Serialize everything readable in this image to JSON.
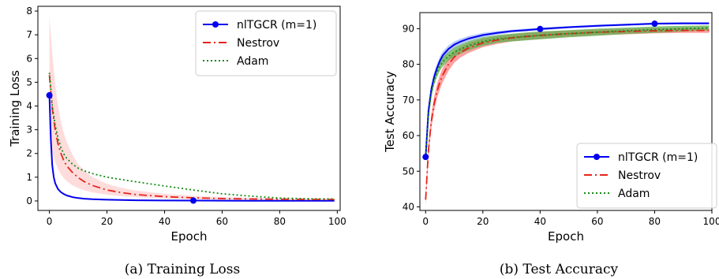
{
  "captions": [
    "(a)  Training Loss",
    "(b)  Test Accuracy"
  ],
  "chart_data": [
    {
      "type": "line",
      "xlabel": "Epoch",
      "ylabel": "Training Loss",
      "xlim": [
        -4,
        101
      ],
      "ylim": [
        -0.4,
        8.2
      ],
      "xticks": [
        0,
        20,
        40,
        60,
        80,
        100
      ],
      "yticks": [
        0,
        1,
        2,
        3,
        4,
        5,
        6,
        7,
        8
      ],
      "grid": false,
      "legend": "top-right",
      "series": [
        {
          "name": "nlTGCR (m=1)",
          "color": "#0000ee",
          "style": "solid-markers",
          "markers_at": [
            0,
            50
          ],
          "x": [
            0,
            0.5,
            1,
            1.5,
            2,
            3,
            4,
            5,
            6,
            8,
            10,
            12,
            15,
            20,
            25,
            30,
            40,
            50,
            60,
            70,
            80,
            90,
            99
          ],
          "y": [
            4.45,
            2.6,
            1.5,
            1.0,
            0.75,
            0.5,
            0.37,
            0.29,
            0.23,
            0.16,
            0.12,
            0.095,
            0.07,
            0.05,
            0.04,
            0.03,
            0.02,
            0.015,
            0.012,
            0.01,
            0.01,
            0.008,
            0.008
          ]
        },
        {
          "name": "Nestrov",
          "color": "#e8231a",
          "style": "dashdot",
          "band": "#ffd6d6",
          "x": [
            0,
            1,
            2,
            3,
            4,
            5,
            6,
            8,
            10,
            12,
            15,
            20,
            25,
            30,
            40,
            50,
            60,
            70,
            80,
            90,
            99
          ],
          "y": [
            5.3,
            3.9,
            3.0,
            2.4,
            2.0,
            1.7,
            1.48,
            1.2,
            0.98,
            0.82,
            0.65,
            0.46,
            0.35,
            0.27,
            0.18,
            0.13,
            0.1,
            0.08,
            0.07,
            0.06,
            0.06
          ],
          "band_upper": [
            7.8,
            6.2,
            4.9,
            4.0,
            3.35,
            2.85,
            2.5,
            1.95,
            1.55,
            1.28,
            1.0,
            0.72,
            0.55,
            0.44,
            0.3,
            0.21,
            0.16,
            0.13,
            0.11,
            0.1,
            0.1
          ],
          "band_lower": [
            3.0,
            2.1,
            1.65,
            1.35,
            1.12,
            0.96,
            0.84,
            0.66,
            0.54,
            0.45,
            0.36,
            0.26,
            0.2,
            0.16,
            0.1,
            0.07,
            0.05,
            0.04,
            0.03,
            0.03,
            0.03
          ]
        },
        {
          "name": "Adam",
          "color": "#138a13",
          "style": "dotted",
          "x": [
            0,
            1,
            2,
            3,
            4,
            5,
            6,
            8,
            10,
            12,
            15,
            20,
            25,
            30,
            40,
            50,
            60,
            70,
            80,
            90,
            99
          ],
          "y": [
            5.4,
            4.0,
            3.2,
            2.65,
            2.25,
            1.98,
            1.8,
            1.55,
            1.38,
            1.27,
            1.15,
            1.0,
            0.9,
            0.81,
            0.63,
            0.46,
            0.3,
            0.2,
            0.12,
            0.09,
            0.08
          ]
        }
      ]
    },
    {
      "type": "line",
      "xlabel": "Epoch",
      "ylabel": "Test Accuracy",
      "xlim": [
        -2,
        100
      ],
      "ylim": [
        39,
        94.5
      ],
      "xticks": [
        0,
        20,
        40,
        60,
        80,
        100
      ],
      "yticks": [
        40,
        50,
        60,
        70,
        80,
        90
      ],
      "grid": false,
      "legend": "bottom-right",
      "series": [
        {
          "name": "nlTGCR (m=1)",
          "color": "#0000ee",
          "style": "solid-markers",
          "markers_at": [
            0,
            40,
            80
          ],
          "band": "#9fb8ff",
          "x": [
            0,
            1,
            2,
            3,
            4,
            5,
            6,
            8,
            10,
            12,
            15,
            20,
            25,
            30,
            35,
            40,
            50,
            60,
            70,
            80,
            90,
            99
          ],
          "y": [
            54,
            67,
            73,
            76.5,
            79,
            81,
            82.5,
            84.3,
            85.5,
            86.3,
            87.2,
            88.2,
            88.8,
            89.3,
            89.6,
            89.9,
            90.4,
            90.8,
            91.1,
            91.4,
            91.5,
            91.5
          ],
          "band_upper": [
            55,
            68.2,
            74.2,
            77.7,
            80.2,
            82.2,
            83.6,
            85.3,
            86.4,
            87.1,
            87.9,
            88.8,
            89.3,
            89.7,
            90,
            90.3,
            90.7,
            91.1,
            91.4,
            91.7,
            91.8,
            91.8
          ],
          "band_lower": [
            53,
            65.8,
            71.8,
            75.3,
            77.8,
            79.8,
            81.4,
            83.3,
            84.6,
            85.5,
            86.5,
            87.6,
            88.3,
            88.9,
            89.2,
            89.5,
            90.1,
            90.5,
            90.8,
            91.1,
            91.2,
            91.2
          ]
        },
        {
          "name": "Nestrov",
          "color": "#e8231a",
          "style": "dashdot",
          "band": "#ff8080",
          "x": [
            0,
            1,
            2,
            3,
            4,
            5,
            6,
            8,
            10,
            12,
            15,
            20,
            25,
            30,
            35,
            40,
            50,
            60,
            70,
            80,
            90,
            99
          ],
          "y": [
            42,
            56,
            64,
            69,
            72.5,
            75,
            77,
            80,
            82,
            83.3,
            84.6,
            86,
            86.8,
            87.4,
            87.8,
            88.1,
            88.6,
            89,
            89.2,
            89.4,
            89.5,
            89.5
          ],
          "band_upper": [
            43.5,
            58,
            66,
            71,
            74.5,
            77,
            79,
            81.8,
            83.6,
            84.8,
            86,
            87.2,
            87.9,
            88.4,
            88.8,
            89.1,
            89.5,
            89.8,
            90,
            90.1,
            90.2,
            90.2
          ],
          "band_lower": [
            40.5,
            54,
            62,
            67,
            70.5,
            73,
            75,
            78.2,
            80.4,
            81.8,
            83.2,
            84.8,
            85.7,
            86.4,
            86.8,
            87.1,
            87.7,
            88.2,
            88.4,
            88.7,
            88.8,
            88.8
          ]
        },
        {
          "name": "Adam",
          "color": "#138a13",
          "style": "dotted",
          "band": "#5fae4f",
          "x": [
            0,
            1,
            2,
            3,
            4,
            5,
            6,
            8,
            10,
            12,
            15,
            20,
            25,
            30,
            35,
            40,
            50,
            60,
            70,
            80,
            90,
            99
          ],
          "y": [
            54,
            66,
            72,
            75.5,
            77.8,
            79.5,
            80.7,
            82.3,
            83.4,
            84.2,
            85.2,
            86.4,
            87.1,
            87.5,
            87.8,
            88.1,
            88.6,
            89,
            89.4,
            89.7,
            90,
            90.2
          ],
          "band_upper": [
            55,
            67.3,
            73.3,
            76.8,
            79.1,
            80.8,
            82,
            83.5,
            84.7,
            85.5,
            86.5,
            87.6,
            88.2,
            88.6,
            88.9,
            89.2,
            89.6,
            90,
            90.3,
            90.6,
            90.8,
            90.9
          ],
          "band_lower": [
            53,
            64.7,
            70.7,
            74.2,
            76.5,
            78.2,
            79.4,
            81.1,
            82.1,
            82.9,
            83.9,
            85.2,
            86,
            86.4,
            86.7,
            87,
            87.6,
            88,
            88.5,
            88.8,
            89.2,
            89.5
          ]
        }
      ]
    }
  ]
}
